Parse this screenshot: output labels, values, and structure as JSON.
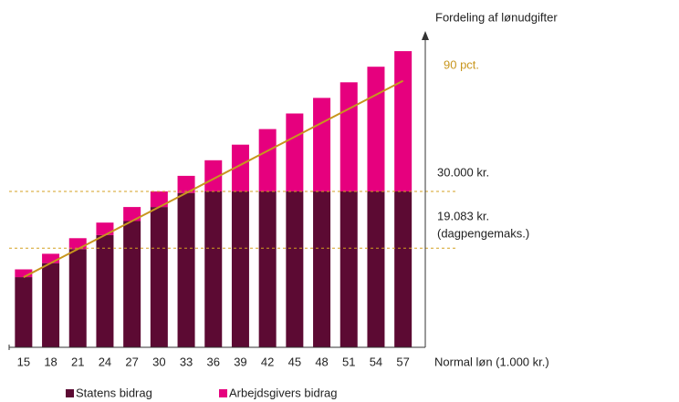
{
  "chart_data": {
    "type": "stacked_bar_line",
    "y_axis_label": "Fordeling af lønudgifter",
    "x_axis_label": "Normal løn (1.000 kr.)",
    "categories": [
      "15",
      "18",
      "21",
      "24",
      "27",
      "30",
      "33",
      "36",
      "39",
      "42",
      "45",
      "48",
      "51",
      "54",
      "57"
    ],
    "series": [
      {
        "name": "Statens bidrag",
        "color": "#5c0a33",
        "values": [
          13.5,
          16.2,
          18.9,
          21.6,
          24.3,
          27,
          29.7,
          30,
          30,
          30,
          30,
          30,
          30,
          30,
          30
        ]
      },
      {
        "name": "Arbejdsgivers bidrag",
        "color": "#e6007e",
        "values": [
          1.5,
          1.8,
          2.1,
          2.4,
          2.7,
          3,
          3.3,
          6,
          9,
          12,
          15,
          18,
          21,
          24,
          27
        ]
      }
    ],
    "line": {
      "name": "90 pct.",
      "color": "#c8961e",
      "values": [
        13.5,
        16.2,
        18.9,
        21.6,
        24.3,
        27,
        29.7,
        32.4,
        35.1,
        37.8,
        40.5,
        43.2,
        45.9,
        48.6,
        51.3
      ]
    },
    "reference_lines": [
      {
        "value": 30,
        "label": "30.000 kr."
      },
      {
        "value": 19.083,
        "label": "19.083 kr.",
        "sublabel": "(dagpengemaks.)"
      }
    ],
    "reference_color": "#d4a020",
    "ylim": [
      0,
      60
    ]
  }
}
